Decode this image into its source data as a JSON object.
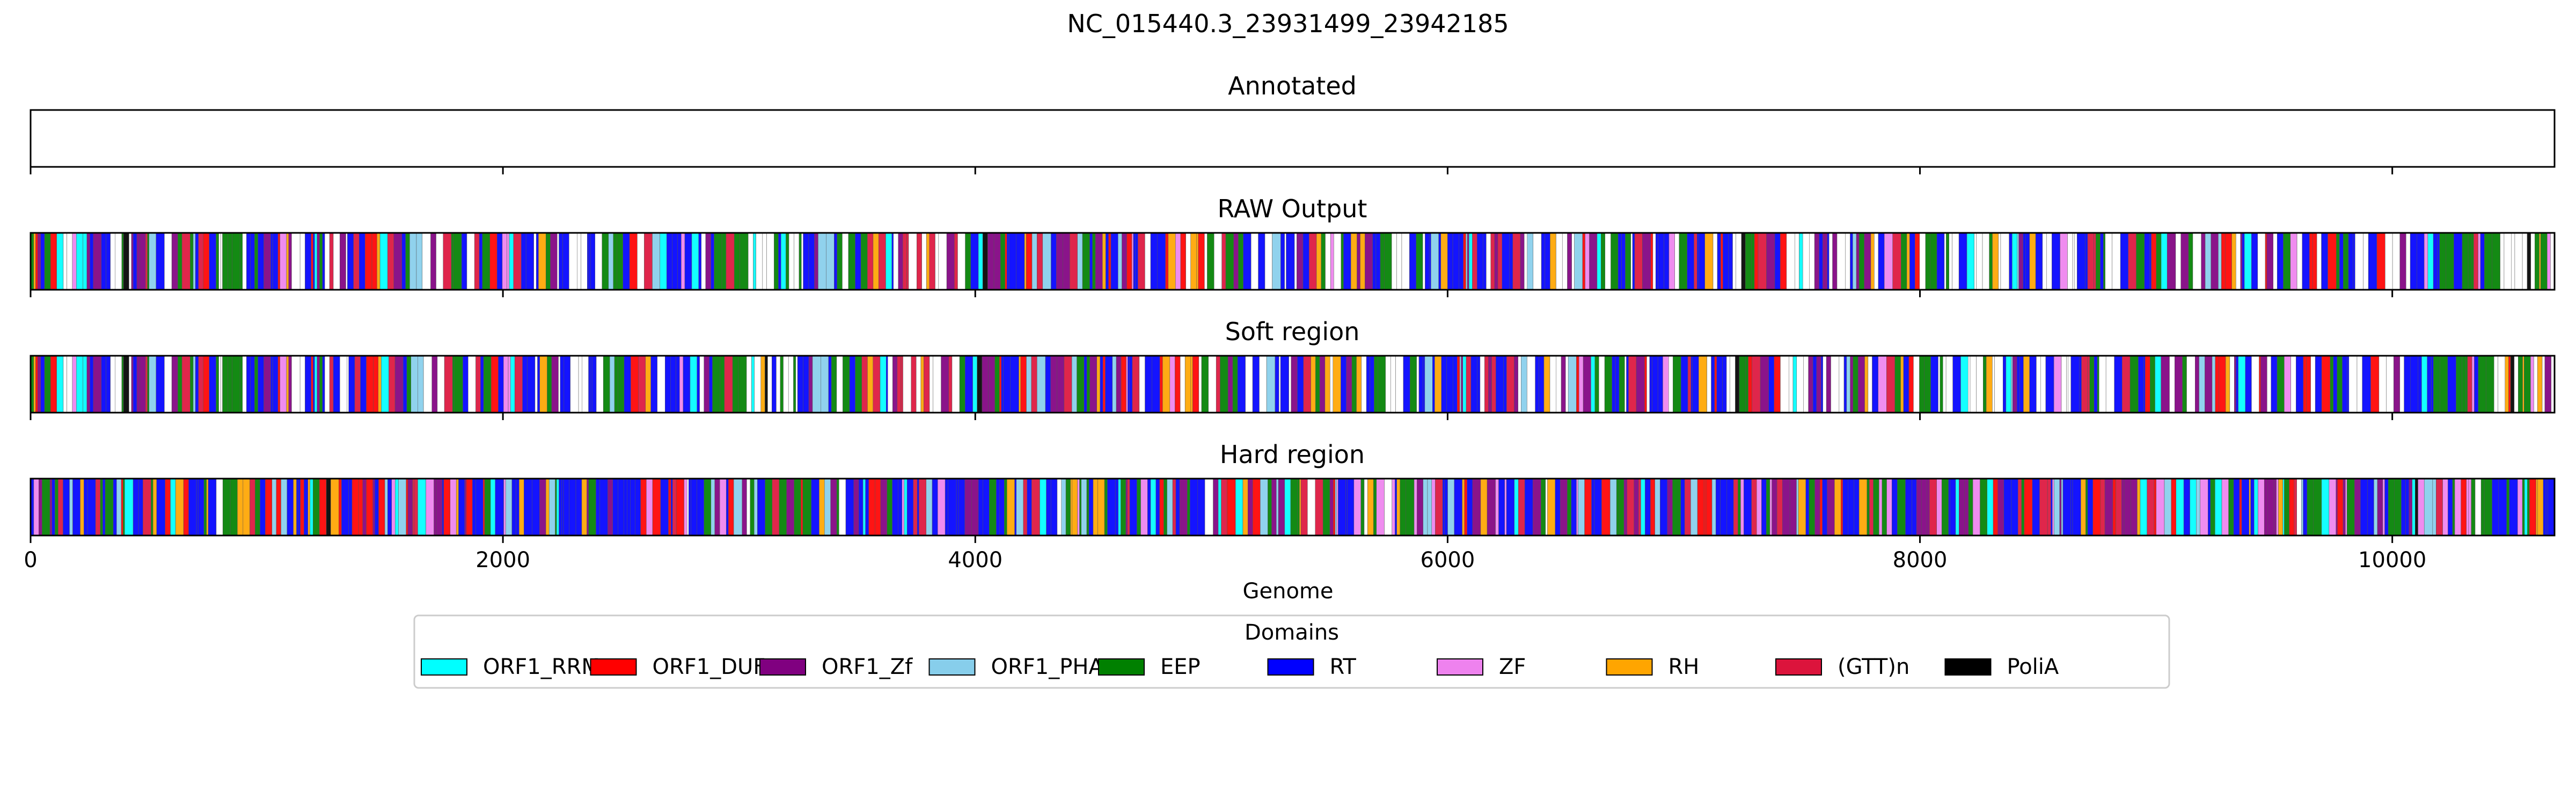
{
  "chart_data": {
    "type": "bar",
    "title": "NC_015440.3_23931499_23942185",
    "xlabel": "Genome",
    "xlim": [
      0,
      10687
    ],
    "x_ticks": [
      0,
      2000,
      4000,
      6000,
      8000,
      10000
    ],
    "x_tick_labels": [
      "0",
      "2000",
      "4000",
      "6000",
      "8000",
      "10000"
    ],
    "panels": [
      {
        "title": "Annotated",
        "segments": []
      },
      {
        "title": "RAW Output",
        "seed": 11,
        "white_fraction": 0.22
      },
      {
        "title": "Soft region",
        "seed": 11,
        "white_fraction": 0.2
      },
      {
        "title": "Hard region",
        "seed": 23,
        "white_fraction": 0.02
      }
    ],
    "legend": {
      "title": "Domains",
      "placement": "lower-center",
      "entries": [
        {
          "label": "ORF1_RRM",
          "color": "#00ffff"
        },
        {
          "label": "ORF1_DUF",
          "color": "#ff0000"
        },
        {
          "label": "ORF1_Zf",
          "color": "#800080"
        },
        {
          "label": "ORF1_PHA",
          "color": "#87ceeb"
        },
        {
          "label": "EEP",
          "color": "#008000"
        },
        {
          "label": "RT",
          "color": "#0000ff"
        },
        {
          "label": "ZF",
          "color": "#ee82ee"
        },
        {
          "label": "RH",
          "color": "#ffa500"
        },
        {
          "label": "(GTT)n",
          "color": "#dc143c"
        },
        {
          "label": "PoliA",
          "color": "#000000"
        }
      ]
    }
  }
}
